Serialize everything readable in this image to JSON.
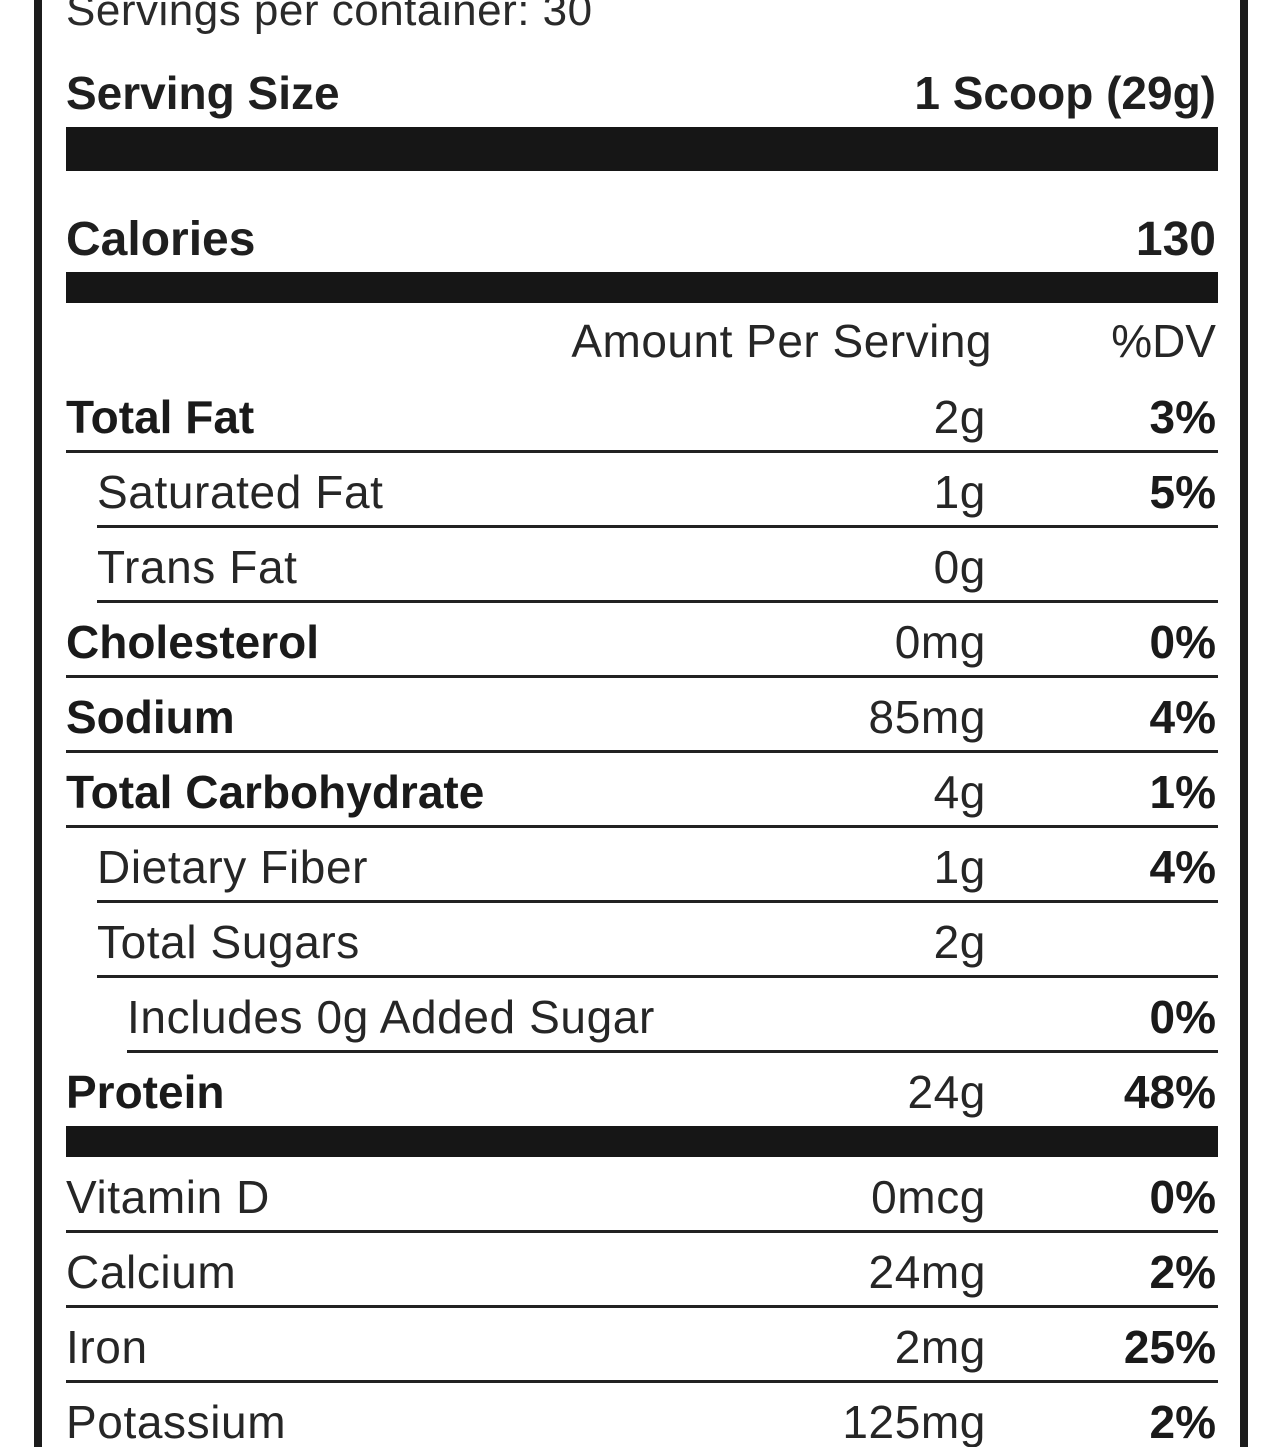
{
  "servings_per_container": "Servings per container: 30",
  "serving_size": {
    "label": "Serving Size",
    "value": "1 Scoop (29g)"
  },
  "calories": {
    "label": "Calories",
    "value": "130"
  },
  "columns": {
    "amount": "Amount Per Serving",
    "dv": "%DV"
  },
  "nutrients": [
    {
      "name": "Total Fat",
      "amount": "2g",
      "dv": "3%"
    },
    {
      "name": "Saturated Fat",
      "amount": "1g",
      "dv": "5%"
    },
    {
      "name": "Trans Fat",
      "amount": "0g",
      "dv": ""
    },
    {
      "name": "Cholesterol",
      "amount": "0mg",
      "dv": "0%"
    },
    {
      "name": "Sodium",
      "amount": "85mg",
      "dv": "4%"
    },
    {
      "name": "Total Carbohydrate",
      "amount": "4g",
      "dv": "1%"
    },
    {
      "name": "Dietary Fiber",
      "amount": "1g",
      "dv": "4%"
    },
    {
      "name": "Total Sugars",
      "amount": "2g",
      "dv": ""
    },
    {
      "name": "Includes 0g Added Sugar",
      "amount": "",
      "dv": "0%"
    },
    {
      "name": "Protein",
      "amount": "24g",
      "dv": "48%"
    }
  ],
  "vitamins": [
    {
      "name": "Vitamin D",
      "amount": "0mcg",
      "dv": "0%"
    },
    {
      "name": "Calcium",
      "amount": "24mg",
      "dv": "2%"
    },
    {
      "name": "Iron",
      "amount": "2mg",
      "dv": "25%"
    },
    {
      "name": "Potassium",
      "amount": "125mg",
      "dv": "2%"
    }
  ]
}
